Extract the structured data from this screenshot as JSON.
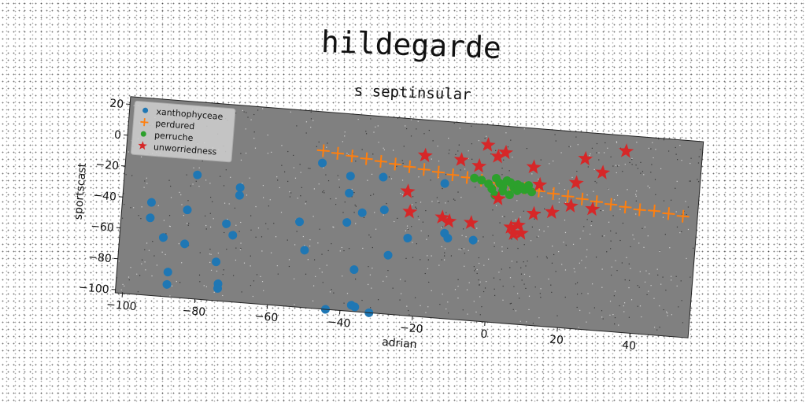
{
  "chart_data": {
    "type": "scatter",
    "title": "hildegarde",
    "subtitle": "s septinsular",
    "xlabel": "adrian",
    "ylabel": "sportscast",
    "xlim": [
      -102,
      56
    ],
    "ylim": [
      -102,
      25
    ],
    "xticks": [
      -100,
      -80,
      -60,
      -40,
      -20,
      0,
      20,
      40
    ],
    "yticks": [
      20,
      0,
      -20,
      -40,
      -60,
      -80,
      -100
    ],
    "grid": false,
    "legend_position": "top-left",
    "background": "#808080",
    "series": [
      {
        "name": "xanthophyceae",
        "marker": "circle",
        "color": "#1f77b4",
        "points": [
          [
            -94,
            -42
          ],
          [
            -94,
            -52
          ],
          [
            -90,
            -64
          ],
          [
            -88,
            -86
          ],
          [
            -88,
            -94
          ],
          [
            -84,
            -67
          ],
          [
            -84,
            -45
          ],
          [
            -82,
            -22
          ],
          [
            -75,
            -77
          ],
          [
            -74,
            -91
          ],
          [
            -74,
            -94
          ],
          [
            -73,
            -52
          ],
          [
            -71,
            -59
          ],
          [
            -70,
            -28
          ],
          [
            -70,
            -33
          ],
          [
            -53,
            -47
          ],
          [
            -51,
            -65
          ],
          [
            -48,
            -8
          ],
          [
            -44,
            -102
          ],
          [
            -40,
            -15
          ],
          [
            -40,
            -26
          ],
          [
            -40,
            -45
          ],
          [
            -37,
            -75
          ],
          [
            -37,
            -98
          ],
          [
            -36,
            -99
          ],
          [
            -36,
            -38
          ],
          [
            -32,
            -102
          ],
          [
            -31,
            -14
          ],
          [
            -30,
            -35
          ],
          [
            -28,
            -64
          ],
          [
            -23,
            -52
          ],
          [
            -14,
            -15
          ],
          [
            -13,
            -47
          ],
          [
            -12,
            -50
          ],
          [
            -5,
            -50
          ]
        ]
      },
      {
        "name": "perdured",
        "marker": "plus",
        "color": "#ff7f0e",
        "points": [
          [
            -48,
            0
          ],
          [
            -44,
            -1
          ],
          [
            -40,
            -2
          ],
          [
            -36,
            -3
          ],
          [
            -32,
            -4
          ],
          [
            -28,
            -5
          ],
          [
            -24,
            -6
          ],
          [
            -20,
            -7
          ],
          [
            -16,
            -8
          ],
          [
            -12,
            -9
          ],
          [
            -8,
            -10
          ],
          [
            -4,
            -11
          ],
          [
            0,
            -12
          ],
          [
            4,
            -13
          ],
          [
            8,
            -14
          ],
          [
            12,
            -15
          ],
          [
            16,
            -16
          ],
          [
            20,
            -17
          ],
          [
            24,
            -18
          ],
          [
            28,
            -19
          ],
          [
            32,
            -20
          ],
          [
            36,
            -21
          ],
          [
            40,
            -22
          ],
          [
            44,
            -22
          ],
          [
            48,
            -23
          ],
          [
            52,
            -24
          ]
        ]
      },
      {
        "name": "perruche",
        "marker": "circle",
        "color": "#2ca02c",
        "points": [
          [
            -6,
            -10
          ],
          [
            -4,
            -11
          ],
          [
            -2,
            -13
          ],
          [
            -1,
            -16
          ],
          [
            0,
            -9
          ],
          [
            0,
            -20
          ],
          [
            1,
            -12
          ],
          [
            2,
            -14
          ],
          [
            2,
            -17
          ],
          [
            3,
            -10
          ],
          [
            4,
            -11
          ],
          [
            4,
            -19
          ],
          [
            5,
            -14
          ],
          [
            6,
            -12
          ],
          [
            6,
            -16
          ],
          [
            7,
            -13
          ],
          [
            8,
            -15
          ],
          [
            9,
            -12
          ],
          [
            10,
            -16
          ]
        ]
      },
      {
        "name": "unworriedness",
        "marker": "star",
        "color": "#d62728",
        "points": [
          [
            -24,
            -22
          ],
          [
            -23,
            -35
          ],
          [
            -20,
            2
          ],
          [
            -14,
            -37
          ],
          [
            -12,
            -39
          ],
          [
            -10,
            1
          ],
          [
            -6,
            -39
          ],
          [
            -5,
            -2
          ],
          [
            -3,
            12
          ],
          [
            0,
            5
          ],
          [
            1,
            -22
          ],
          [
            2,
            8
          ],
          [
            5,
            -40
          ],
          [
            6,
            -44
          ],
          [
            7,
            -38
          ],
          [
            8,
            -43
          ],
          [
            10,
            0
          ],
          [
            11,
            -30
          ],
          [
            12,
            -11
          ],
          [
            16,
            -28
          ],
          [
            21,
            -23
          ],
          [
            22,
            -8
          ],
          [
            24,
            8
          ],
          [
            27,
            -24
          ],
          [
            29,
            0
          ],
          [
            35,
            15
          ]
        ]
      }
    ]
  }
}
